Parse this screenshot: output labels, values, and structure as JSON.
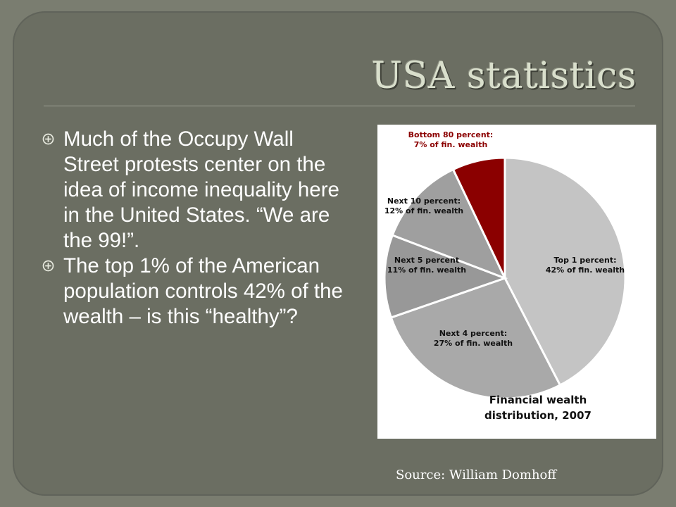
{
  "slide": {
    "title": "USA statistics",
    "bullets": [
      "Much of the Occupy Wall Street protests center on the idea of income inequality here in the United States. “We are the 99!”.",
      "The top 1% of the American population controls 42% of the wealth – is this “healthy”?"
    ],
    "source": "Source: William Domhoff"
  },
  "colors": {
    "background": "#6b6e62",
    "title": "#d9dfcc",
    "text": "#ffffff",
    "highlight_slice": "#8b0000",
    "highlight_label": "#8b0000"
  },
  "icons": {
    "bullet": "circled-plus-icon"
  },
  "chart_data": {
    "type": "pie",
    "title": "Financial wealth distribution, 2007",
    "start": "top",
    "direction": "clockwise",
    "slices": [
      {
        "name": "Top 1 percent",
        "value": 42,
        "label": [
          "Top 1 percent:",
          "42% of fin. wealth"
        ],
        "color": "#c4c4c4",
        "label_color": "#111111"
      },
      {
        "name": "Next 4 percent",
        "value": 27,
        "label": [
          "Next 4 percent:",
          "27% of fin. wealth"
        ],
        "color": "#a9a9a9",
        "label_color": "#111111"
      },
      {
        "name": "Next 5 percent",
        "value": 11,
        "label": [
          "Next 5 percent",
          "11% of fin. wealth"
        ],
        "color": "#989898",
        "label_color": "#111111"
      },
      {
        "name": "Next 10 percent",
        "value": 12,
        "label": [
          "Next 10 percent:",
          "12% of fin. wealth"
        ],
        "color": "#9f9f9f",
        "label_color": "#111111"
      },
      {
        "name": "Bottom 80 percent",
        "value": 7,
        "label": [
          "Bottom 80 percent:",
          "7% of fin. wealth"
        ],
        "color": "#8b0000",
        "label_color": "#8b0000"
      }
    ]
  }
}
